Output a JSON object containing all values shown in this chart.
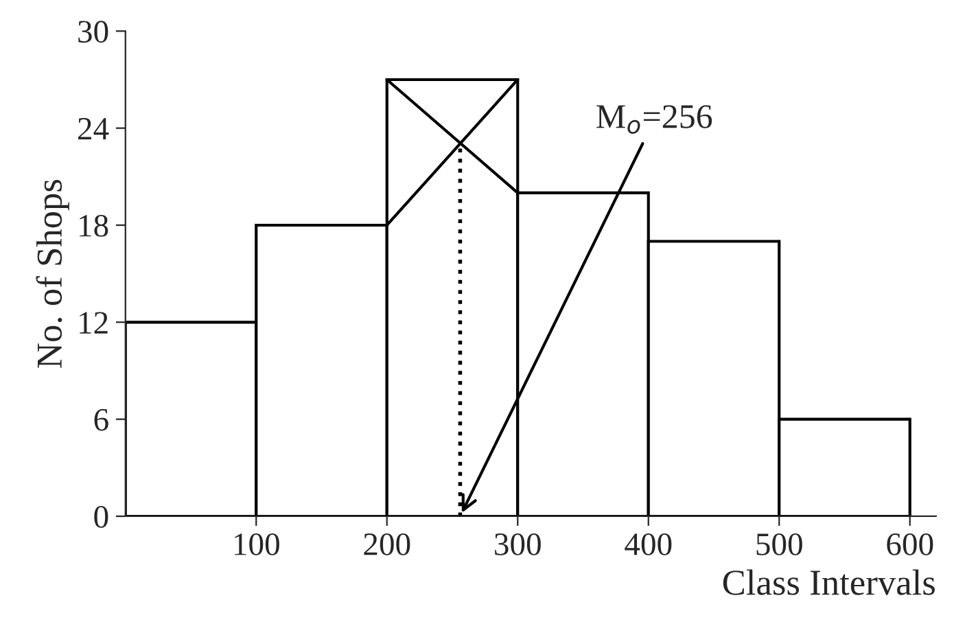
{
  "chart_data": {
    "type": "histogram",
    "xlabel": "Class Intervals",
    "ylabel": "No. of Shops",
    "xlim": [
      0,
      620
    ],
    "xticks": [
      100,
      200,
      300,
      400,
      500,
      600
    ],
    "ylim": [
      0,
      30
    ],
    "yticks": [
      0,
      6,
      12,
      18,
      24,
      30
    ],
    "grid": false,
    "legend": false,
    "bins": [
      0,
      100,
      200,
      300,
      400,
      500,
      600
    ],
    "values": [
      12,
      18,
      27,
      20,
      17,
      6
    ],
    "color": "#ffffff",
    "series": [
      {
        "type": "line",
        "x": [
          200,
          300
        ],
        "values": [
          18,
          27
        ],
        "color": "#000000",
        "line_style": "solid"
      },
      {
        "type": "line",
        "x": [
          200,
          300
        ],
        "values": [
          27,
          20
        ],
        "color": "#000000",
        "line_style": "solid"
      },
      {
        "type": "line",
        "x": [
          256,
          256
        ],
        "values": [
          0,
          23
        ],
        "color": "#000000",
        "line_style": "dotted"
      }
    ],
    "annotations": [
      {
        "text": "M$_{o}$=256",
        "x": 256,
        "y": 0
      }
    ]
  }
}
